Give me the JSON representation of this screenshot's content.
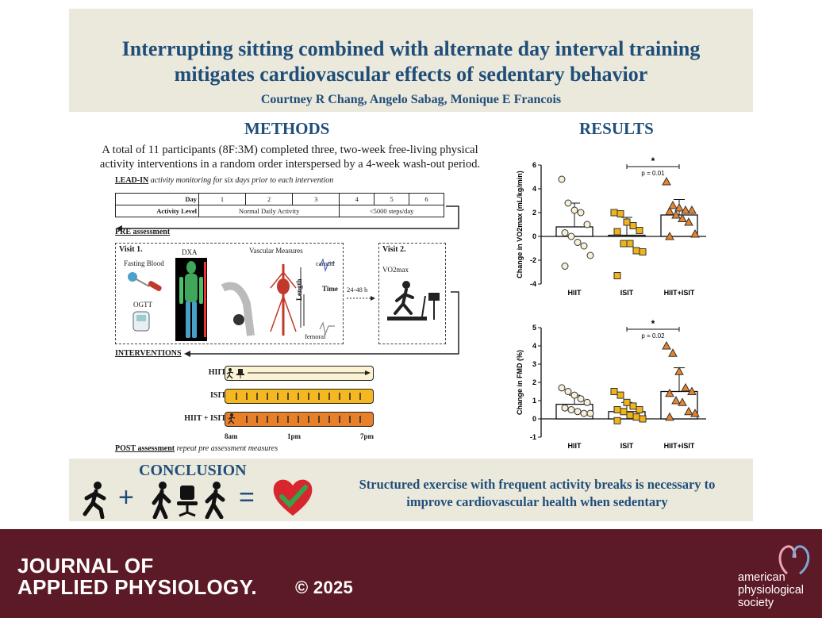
{
  "header": {
    "title_line1": "Interrupting sitting combined with alternate day interval training",
    "title_line2": "mitigates cardiovascular effects of sedentary behavior",
    "authors": "Courtney R Chang, Angelo Sabag, Monique E Francois"
  },
  "methods": {
    "heading": "METHODS",
    "intro_line1": "A total of 11 participants (8F:3M) completed three, two-week free-living physical",
    "intro_line2": "activity interventions in a random order interspersed by a 4-week wash-out period.",
    "lead_in_label": "LEAD-IN",
    "lead_in_desc": "activity monitoring for six days prior to each intervention",
    "schedule": {
      "day_label": "Day",
      "days": [
        "1",
        "2",
        "3",
        "4",
        "5",
        "6"
      ],
      "activity_label": "Activity Level",
      "normal": "Normal Daily Activity",
      "restricted": "<5000 steps/day"
    },
    "pre_label": "PRE assessment",
    "visit1": {
      "title": "Visit 1.",
      "fasting": "Fasting Blood",
      "ogtt": "OGTT",
      "dxa": "DXA",
      "vascular": "Vascular Measures",
      "carotid": "carotid",
      "time": "Time",
      "length": "Length",
      "femoral": "femoral"
    },
    "gap": "24-48 h",
    "visit2": {
      "title": "Visit 2.",
      "vo2": "VO2max"
    },
    "interventions_label": "INTERVENTIONS",
    "bars": [
      {
        "label": "HIIT",
        "color": "#fbf3d2"
      },
      {
        "label": "ISIT",
        "color": "#f5b820"
      },
      {
        "label": "HIIT + ISIT",
        "color": "#e8802a"
      }
    ],
    "time_axis": [
      "8am",
      "1pm",
      "7pm"
    ],
    "post_label": "POST assessment",
    "post_desc": "repeat pre assessment measures"
  },
  "results": {
    "heading": "RESULTS"
  },
  "chart_data": [
    {
      "type": "bar",
      "title": "",
      "ylabel": "Change in VO2max (mL/kg/min)",
      "ylim": [
        -4,
        6
      ],
      "yticks": [
        -4,
        -2,
        0,
        2,
        4,
        6
      ],
      "categories": [
        "HIIT",
        "ISIT",
        "HIIT+ISIT"
      ],
      "means": [
        0.8,
        0.1,
        1.8
      ],
      "sd": [
        2.0,
        1.5,
        1.3
      ],
      "points": [
        [
          4.8,
          2.8,
          2.2,
          2.0,
          1.0,
          0.3,
          0.0,
          -0.5,
          -0.8,
          -1.6,
          -2.5
        ],
        [
          2.0,
          1.9,
          1.2,
          0.9,
          0.5,
          0.4,
          -0.6,
          -0.6,
          -1.2,
          -1.3,
          -3.3
        ],
        [
          4.6,
          2.6,
          2.4,
          2.2,
          2.2,
          2.1,
          1.8,
          1.5,
          1.2,
          0.2,
          0.0
        ]
      ],
      "colors": [
        "#f7f0d6",
        "#f0b418",
        "#e8832a"
      ],
      "markers": [
        "circle",
        "square",
        "triangle"
      ],
      "significance": {
        "label": "*",
        "p": "p = 0.01"
      }
    },
    {
      "type": "bar",
      "title": "",
      "ylabel": "Change in FMD (%)",
      "ylim": [
        -1,
        5
      ],
      "yticks": [
        -1,
        0,
        1,
        2,
        3,
        4,
        5
      ],
      "categories": [
        "HIIT",
        "ISIT",
        "HIIT+ISIT"
      ],
      "means": [
        0.8,
        0.4,
        1.5
      ],
      "sd": [
        0.5,
        0.5,
        1.3
      ],
      "points": [
        [
          1.7,
          1.5,
          1.3,
          1.1,
          0.9,
          0.6,
          0.5,
          0.4,
          0.3,
          0.3
        ],
        [
          1.5,
          1.3,
          0.9,
          0.7,
          0.5,
          0.5,
          0.4,
          0.2,
          0.1,
          0.0,
          -0.1
        ],
        [
          4.0,
          3.6,
          2.6,
          1.7,
          1.5,
          1.4,
          1.0,
          0.9,
          0.4,
          0.3,
          0.1
        ]
      ],
      "colors": [
        "#f7f0d6",
        "#f0b418",
        "#e8832a"
      ],
      "markers": [
        "circle",
        "square",
        "triangle"
      ],
      "significance": {
        "label": "*",
        "p": "p = 0.02"
      }
    }
  ],
  "conclusion": {
    "heading": "CONCLUSION",
    "plus": "+",
    "equals": "=",
    "text_line1": "Structured exercise with frequent activity breaks is necessary to",
    "text_line2": "improve cardiovascular health when sedentary"
  },
  "footer": {
    "journal_line1": "JOURNAL OF",
    "journal_line2": "APPLIED PHYSIOLOGY.",
    "copyright": "© 2025",
    "society_line1": "american",
    "society_line2": "physiological",
    "society_line3": "society"
  },
  "icons": [
    "runner-icon",
    "walker-icon",
    "office-chair-icon",
    "heart-check-icon",
    "blood-tube-icon",
    "glucometer-icon",
    "treadmill-icon",
    "society-logo-icon"
  ]
}
